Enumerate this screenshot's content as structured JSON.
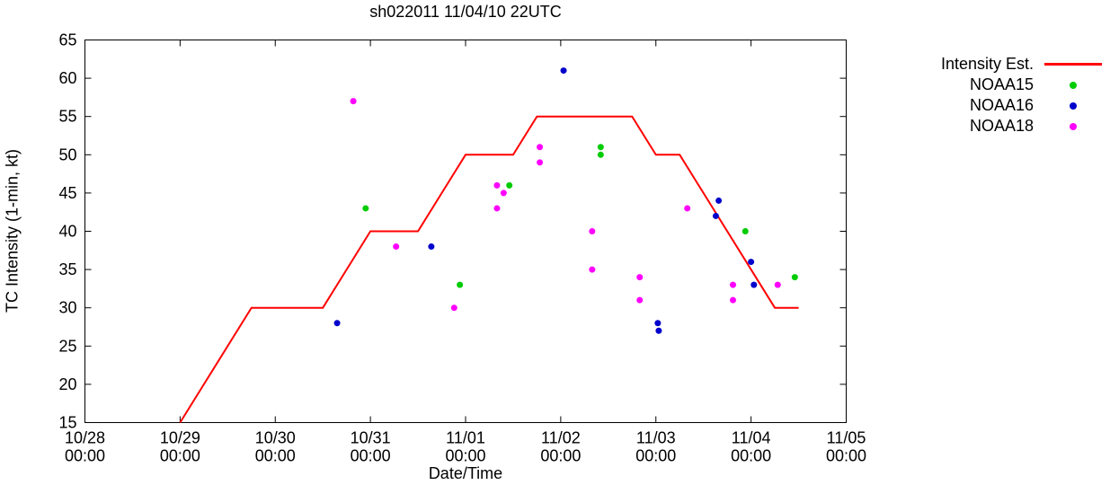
{
  "figure": {
    "title": "sh022011 11/04/10 22UTC",
    "xlabel": "Date/Time",
    "ylabel": "TC Intensity (1-min, kt)"
  },
  "chart_data": {
    "type": "line+scatter",
    "title": "sh022011 11/04/10 22UTC",
    "xlabel": "Date/Time",
    "ylabel": "TC Intensity (1-min, kt)",
    "ylim": [
      15,
      65
    ],
    "y_ticks": [
      15,
      20,
      25,
      30,
      35,
      40,
      45,
      50,
      55,
      60,
      65
    ],
    "x_unit": "days since 10/28 00:00",
    "x_axis": {
      "min_days": 0,
      "max_days": 8,
      "ticks": [
        {
          "day": 0,
          "date": "10/28",
          "time": "00:00"
        },
        {
          "day": 1,
          "date": "10/29",
          "time": "00:00"
        },
        {
          "day": 2,
          "date": "10/30",
          "time": "00:00"
        },
        {
          "day": 3,
          "date": "10/31",
          "time": "00:00"
        },
        {
          "day": 4,
          "date": "11/01",
          "time": "00:00"
        },
        {
          "day": 5,
          "date": "11/02",
          "time": "00:00"
        },
        {
          "day": 6,
          "date": "11/03",
          "time": "00:00"
        },
        {
          "day": 7,
          "date": "11/04",
          "time": "00:00"
        },
        {
          "day": 8,
          "date": "11/05",
          "time": "00:00"
        }
      ]
    },
    "grid": false,
    "legend_position": "outside-top-right",
    "series": [
      {
        "name": "Intensity Est.",
        "type": "line",
        "color": "#ff0000",
        "points": [
          [
            1.0,
            15
          ],
          [
            1.75,
            30
          ],
          [
            2.5,
            30
          ],
          [
            3.0,
            40
          ],
          [
            3.5,
            40
          ],
          [
            4.0,
            50
          ],
          [
            4.5,
            50
          ],
          [
            4.75,
            55
          ],
          [
            5.75,
            55
          ],
          [
            6.0,
            50
          ],
          [
            6.25,
            50
          ],
          [
            7.25,
            30
          ],
          [
            7.5,
            30
          ]
        ]
      },
      {
        "name": "NOAA15",
        "type": "scatter",
        "color": "#00cc00",
        "points": [
          [
            2.95,
            43
          ],
          [
            3.94,
            33
          ],
          [
            4.46,
            46
          ],
          [
            5.42,
            51
          ],
          [
            5.42,
            50
          ],
          [
            6.94,
            40
          ],
          [
            7.46,
            34
          ]
        ]
      },
      {
        "name": "NOAA16",
        "type": "scatter",
        "color": "#0000cc",
        "points": [
          [
            2.65,
            28
          ],
          [
            3.64,
            38
          ],
          [
            5.03,
            61
          ],
          [
            6.02,
            28
          ],
          [
            6.03,
            27
          ],
          [
            6.63,
            42
          ],
          [
            6.66,
            44
          ],
          [
            7.0,
            36
          ],
          [
            7.03,
            33
          ]
        ]
      },
      {
        "name": "NOAA18",
        "type": "scatter",
        "color": "#ff00ff",
        "points": [
          [
            2.82,
            57
          ],
          [
            3.27,
            38
          ],
          [
            3.88,
            30
          ],
          [
            4.33,
            46
          ],
          [
            4.33,
            43
          ],
          [
            4.4,
            45
          ],
          [
            4.78,
            51
          ],
          [
            4.78,
            49
          ],
          [
            5.33,
            40
          ],
          [
            5.33,
            35
          ],
          [
            5.83,
            34
          ],
          [
            5.83,
            31
          ],
          [
            6.33,
            43
          ],
          [
            6.81,
            33
          ],
          [
            6.81,
            31
          ],
          [
            7.28,
            33
          ]
        ]
      }
    ]
  }
}
